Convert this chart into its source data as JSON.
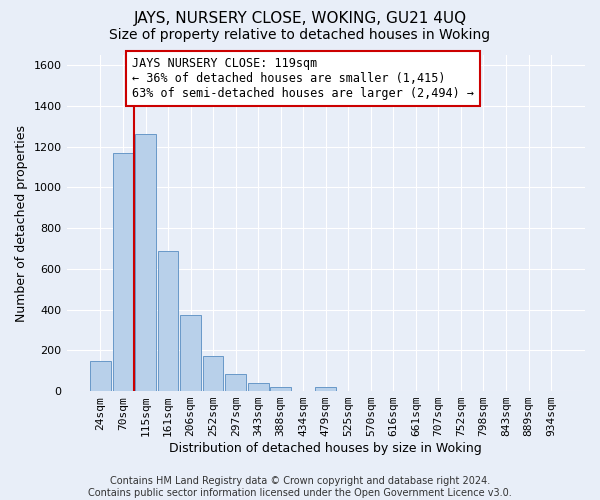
{
  "title": "JAYS, NURSERY CLOSE, WOKING, GU21 4UQ",
  "subtitle": "Size of property relative to detached houses in Woking",
  "xlabel": "Distribution of detached houses by size in Woking",
  "ylabel": "Number of detached properties",
  "footer_line1": "Contains HM Land Registry data © Crown copyright and database right 2024.",
  "footer_line2": "Contains public sector information licensed under the Open Government Licence v3.0.",
  "bin_labels": [
    "24sqm",
    "70sqm",
    "115sqm",
    "161sqm",
    "206sqm",
    "252sqm",
    "297sqm",
    "343sqm",
    "388sqm",
    "434sqm",
    "479sqm",
    "525sqm",
    "570sqm",
    "616sqm",
    "661sqm",
    "707sqm",
    "752sqm",
    "798sqm",
    "843sqm",
    "889sqm",
    "934sqm"
  ],
  "bar_values": [
    147,
    1170,
    1260,
    690,
    375,
    170,
    83,
    38,
    18,
    0,
    20,
    0,
    0,
    0,
    0,
    0,
    0,
    0,
    0,
    0,
    0
  ],
  "bar_color": "#b8d0ea",
  "bar_edge_color": "#6898c8",
  "vline_x_index": 1.5,
  "vline_color": "#cc0000",
  "annotation_line1": "JAYS NURSERY CLOSE: 119sqm",
  "annotation_line2": "← 36% of detached houses are smaller (1,415)",
  "annotation_line3": "63% of semi-detached houses are larger (2,494) →",
  "annotation_box_color": "#ffffff",
  "annotation_box_edge_color": "#cc0000",
  "ylim": [
    0,
    1650
  ],
  "yticks": [
    0,
    200,
    400,
    600,
    800,
    1000,
    1200,
    1400,
    1600
  ],
  "background_color": "#e8eef8",
  "grid_color": "#ffffff",
  "title_fontsize": 11,
  "subtitle_fontsize": 10,
  "ylabel_fontsize": 9,
  "xlabel_fontsize": 9,
  "tick_fontsize": 8,
  "annotation_fontsize": 8.5,
  "footer_fontsize": 7
}
